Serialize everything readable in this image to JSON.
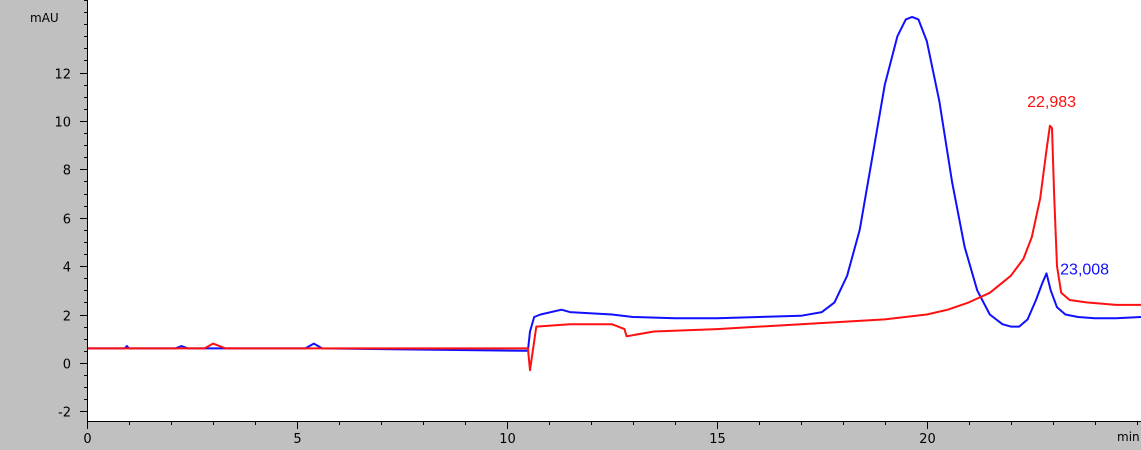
{
  "chart_data": {
    "type": "line",
    "title": "",
    "xlabel": "min",
    "ylabel": "mAU",
    "xlim": [
      0,
      25.1
    ],
    "ylim": [
      -2.4,
      15
    ],
    "x_ticks": [
      0,
      5,
      10,
      15,
      20
    ],
    "y_ticks": [
      -2,
      0,
      2,
      4,
      6,
      8,
      10,
      12
    ],
    "x_minor_step": 1,
    "y_minor_step": 0.5,
    "grid": false,
    "legend": "none",
    "series": [
      {
        "color": "#1010ff",
        "x": [
          0,
          0.9,
          0.95,
          1.0,
          2.1,
          2.25,
          2.4,
          5.2,
          5.4,
          5.6,
          10.4,
          10.5,
          10.55,
          10.65,
          10.8,
          11.3,
          11.5,
          12.5,
          13.0,
          14.0,
          15.0,
          16.0,
          17.0,
          17.5,
          17.8,
          18.1,
          18.4,
          18.7,
          19.0,
          19.3,
          19.5,
          19.65,
          19.8,
          20.0,
          20.3,
          20.6,
          20.9,
          21.2,
          21.5,
          21.8,
          22.0,
          22.2,
          22.4,
          22.6,
          22.75,
          22.85,
          22.95,
          23.1,
          23.3,
          23.6,
          24.0,
          24.5,
          25.1
        ],
        "y": [
          0.6,
          0.6,
          0.7,
          0.6,
          0.6,
          0.7,
          0.6,
          0.6,
          0.8,
          0.6,
          0.5,
          0.5,
          1.3,
          1.9,
          2.0,
          2.2,
          2.1,
          2.0,
          1.9,
          1.85,
          1.85,
          1.9,
          1.95,
          2.1,
          2.5,
          3.6,
          5.5,
          8.5,
          11.5,
          13.5,
          14.2,
          14.3,
          14.2,
          13.3,
          10.8,
          7.5,
          4.8,
          3.0,
          2.0,
          1.6,
          1.5,
          1.5,
          1.8,
          2.6,
          3.3,
          3.7,
          3.0,
          2.3,
          2.0,
          1.9,
          1.85,
          1.85,
          1.9
        ]
      },
      {
        "color": "#ff1010",
        "x": [
          0,
          2.8,
          3.0,
          3.3,
          10.5,
          10.55,
          10.7,
          11.5,
          12.5,
          12.8,
          12.85,
          13.5,
          15.0,
          17.0,
          19.0,
          20.0,
          20.5,
          21.0,
          21.5,
          22.0,
          22.3,
          22.5,
          22.7,
          22.85,
          22.93,
          22.98,
          23.03,
          23.1,
          23.2,
          23.4,
          23.8,
          24.5,
          25.1
        ],
        "y": [
          0.6,
          0.6,
          0.8,
          0.6,
          0.6,
          -0.3,
          1.5,
          1.6,
          1.6,
          1.4,
          1.1,
          1.3,
          1.4,
          1.6,
          1.8,
          2.0,
          2.2,
          2.5,
          2.9,
          3.6,
          4.3,
          5.2,
          6.8,
          8.8,
          9.8,
          9.7,
          7.0,
          4.0,
          2.9,
          2.6,
          2.5,
          2.4,
          2.4
        ]
      }
    ],
    "annotations": [
      {
        "text": "22,983",
        "x": 22.983,
        "y": 9.8,
        "color": "#ff1010"
      },
      {
        "text": "23,008",
        "x": 23.008,
        "y": 3.7,
        "color": "#1010ff"
      }
    ]
  }
}
